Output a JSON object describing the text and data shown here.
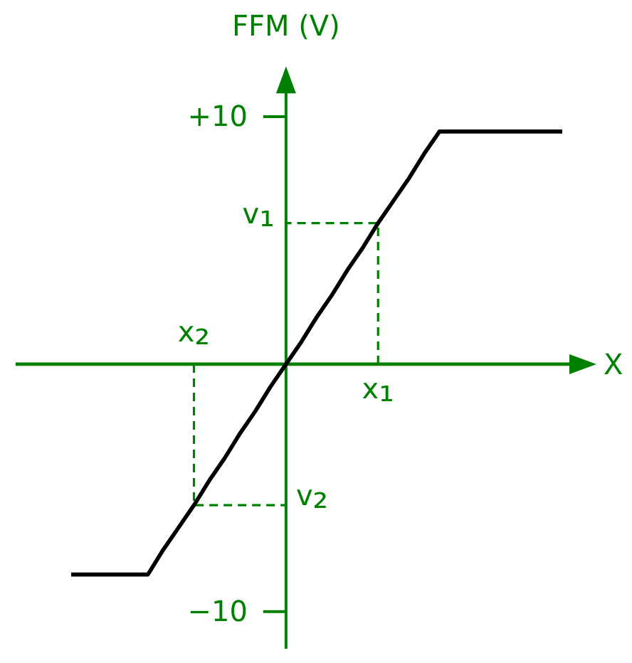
{
  "chart_data": {
    "type": "line",
    "ylabel": "FFM (V)",
    "xlabel": "X",
    "categories": [
      null,
      null,
      null,
      null,
      null,
      null,
      null,
      null,
      "x₂",
      null,
      null,
      null,
      null,
      null,
      null,
      null,
      null,
      null,
      null,
      null,
      "x₁",
      null,
      null,
      null,
      null,
      null,
      null,
      null,
      null,
      null,
      null,
      null,
      null
    ],
    "series": [
      {
        "color": "#000000",
        "values": [
          -8.5,
          -8.5,
          -8.5,
          -8.5,
          -8.5,
          -8.5,
          -7.5,
          -6.6,
          -5.7,
          -4.7,
          -3.8,
          -2.8,
          -1.9,
          -0.9,
          0,
          0.9,
          1.9,
          2.8,
          3.8,
          4.7,
          5.7,
          6.6,
          7.5,
          8.5,
          9.4,
          9.4,
          9.4,
          9.4,
          9.4,
          9.4,
          9.4,
          9.4,
          9.4
        ]
      }
    ],
    "ylim": [
      -11.5,
      11
    ],
    "yticks": [
      {
        "value": 10,
        "label": "+10"
      },
      {
        "value": -10,
        "label": "−10"
      }
    ],
    "ref_lines": [
      {
        "axis": "y",
        "value": 0,
        "color": "#008000"
      }
    ],
    "annotations": [
      {
        "text": "v₁",
        "x": "x₁",
        "y": 5.7
      },
      {
        "text": "v₂",
        "x": "x₂",
        "y": -5.7
      }
    ]
  }
}
